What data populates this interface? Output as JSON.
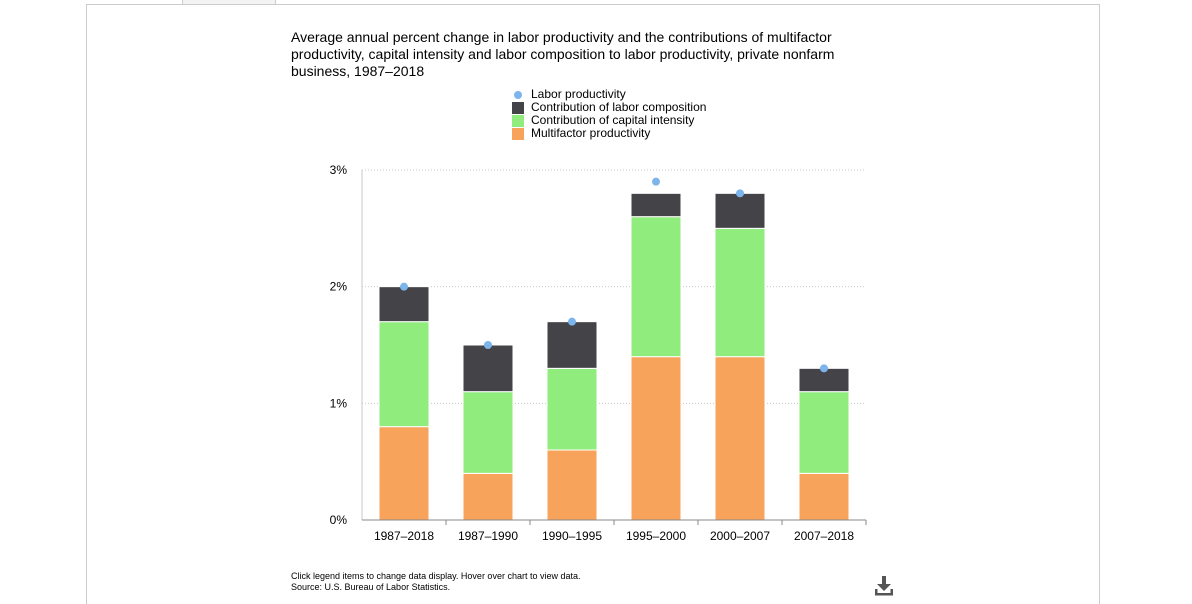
{
  "chart_data": {
    "type": "bar",
    "stacked": true,
    "title": "Average annual percent change in labor productivity and the contributions of multifactor productivity, capital intensity and labor composition to labor productivity, private nonfarm business, 1987–2018",
    "categories": [
      "1987–2018",
      "1987–1990",
      "1990–1995",
      "1995–2000",
      "2000–2007",
      "2007–2018"
    ],
    "series": [
      {
        "name": "Multifactor productivity",
        "type": "bar",
        "color": "#f7a35c",
        "values": [
          0.8,
          0.4,
          0.6,
          1.4,
          1.4,
          0.4
        ]
      },
      {
        "name": "Contribution of capital intensity",
        "type": "bar",
        "color": "#90ed7d",
        "values": [
          0.9,
          0.7,
          0.7,
          1.2,
          1.1,
          0.7
        ]
      },
      {
        "name": "Contribution of labor composition",
        "type": "bar",
        "color": "#434348",
        "values": [
          0.3,
          0.4,
          0.4,
          0.2,
          0.3,
          0.2
        ]
      },
      {
        "name": "Labor productivity",
        "type": "scatter",
        "color": "#7cb5ec",
        "values": [
          2.0,
          1.5,
          1.7,
          2.9,
          2.8,
          1.3
        ]
      }
    ],
    "legend_order": [
      "Labor productivity",
      "Contribution of labor composition",
      "Contribution of capital intensity",
      "Multifactor productivity"
    ],
    "yticks": [
      {
        "value": 0,
        "label": "0%"
      },
      {
        "value": 1,
        "label": "1%"
      },
      {
        "value": 2,
        "label": "2%"
      },
      {
        "value": 3,
        "label": "3%"
      }
    ],
    "ylim": [
      0,
      3
    ],
    "grid": true,
    "legend_position": "top-center"
  },
  "footer": {
    "instructions": "Click legend items to change data display. Hover over chart to view data.",
    "source": "Source: U.S. Bureau of Labor Statistics."
  },
  "icons": {
    "download": "download-icon"
  }
}
